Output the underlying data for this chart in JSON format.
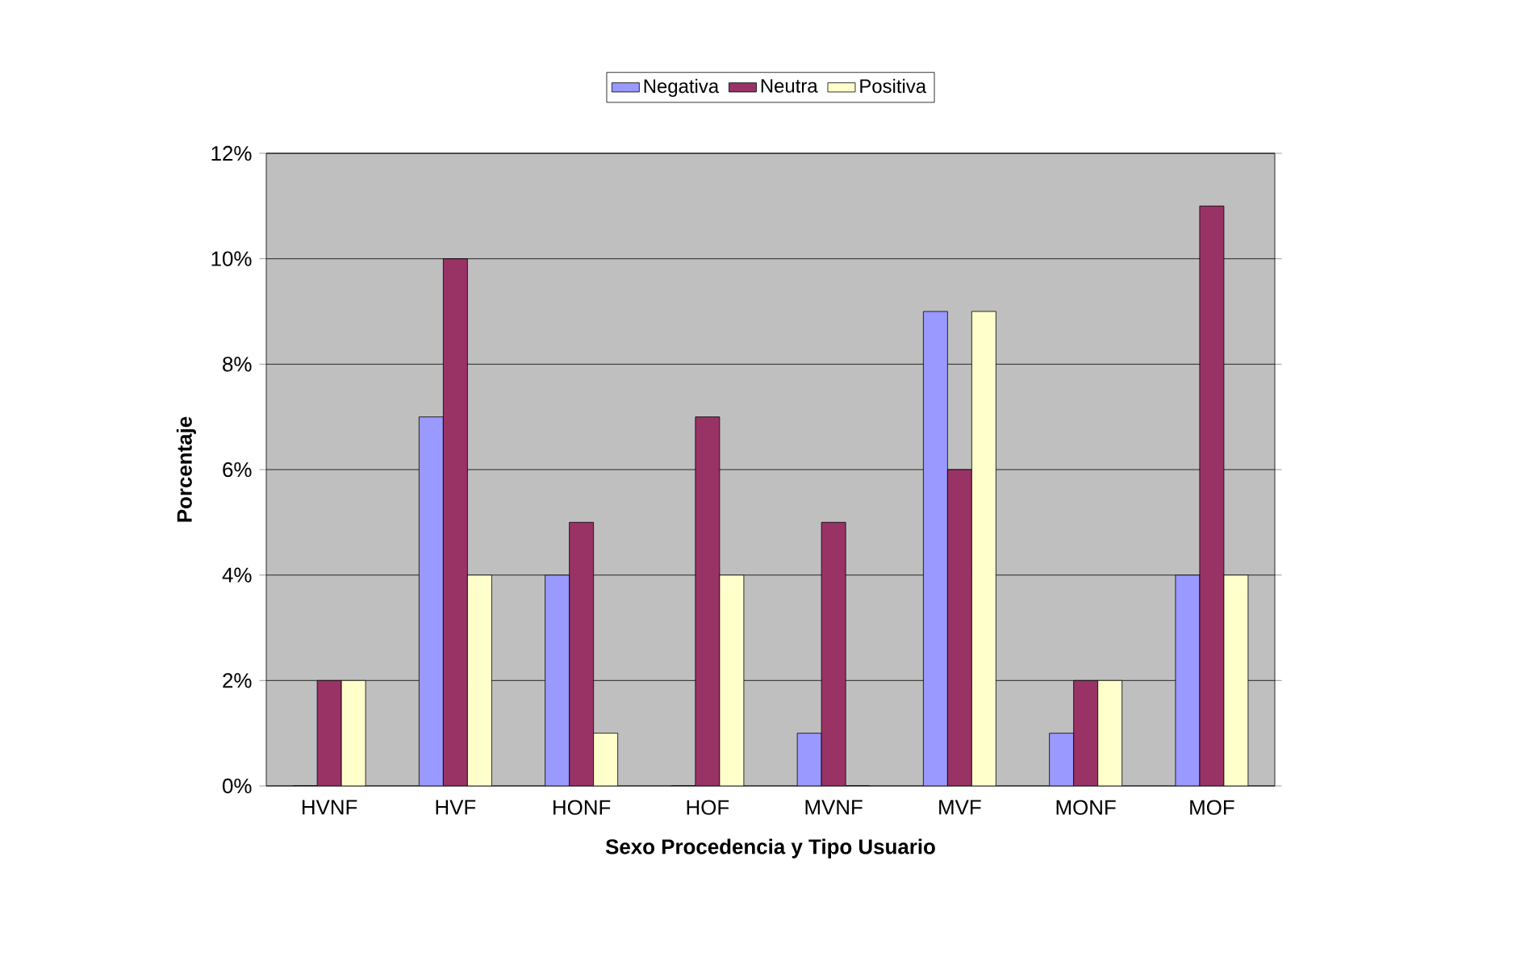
{
  "chart_data": {
    "type": "bar",
    "xlabel": "Sexo Procedencia y Tipo Usuario",
    "ylabel": "Porcentaje",
    "categories": [
      "HVNF",
      "HVF",
      "HONF",
      "HOF",
      "MVNF",
      "MVF",
      "MONF",
      "MOF"
    ],
    "series": [
      {
        "name": "Negativa",
        "color": "#9999ff",
        "values": [
          0,
          7,
          4,
          0,
          1,
          9,
          1,
          4
        ]
      },
      {
        "name": "Neutra",
        "color": "#993366",
        "values": [
          2,
          10,
          5,
          7,
          5,
          6,
          2,
          11
        ]
      },
      {
        "name": "Positiva",
        "color": "#ffffcc",
        "values": [
          2,
          4,
          1,
          4,
          0,
          9,
          2,
          4
        ]
      }
    ],
    "ylim": [
      0,
      12
    ],
    "yticks": [
      {
        "value": 0,
        "label": "0%"
      },
      {
        "value": 2,
        "label": "2%"
      },
      {
        "value": 4,
        "label": "4%"
      },
      {
        "value": 6,
        "label": "6%"
      },
      {
        "value": 8,
        "label": "8%"
      },
      {
        "value": 10,
        "label": "10%"
      },
      {
        "value": 12,
        "label": "12%"
      }
    ],
    "grid": "y",
    "legend": "top"
  }
}
